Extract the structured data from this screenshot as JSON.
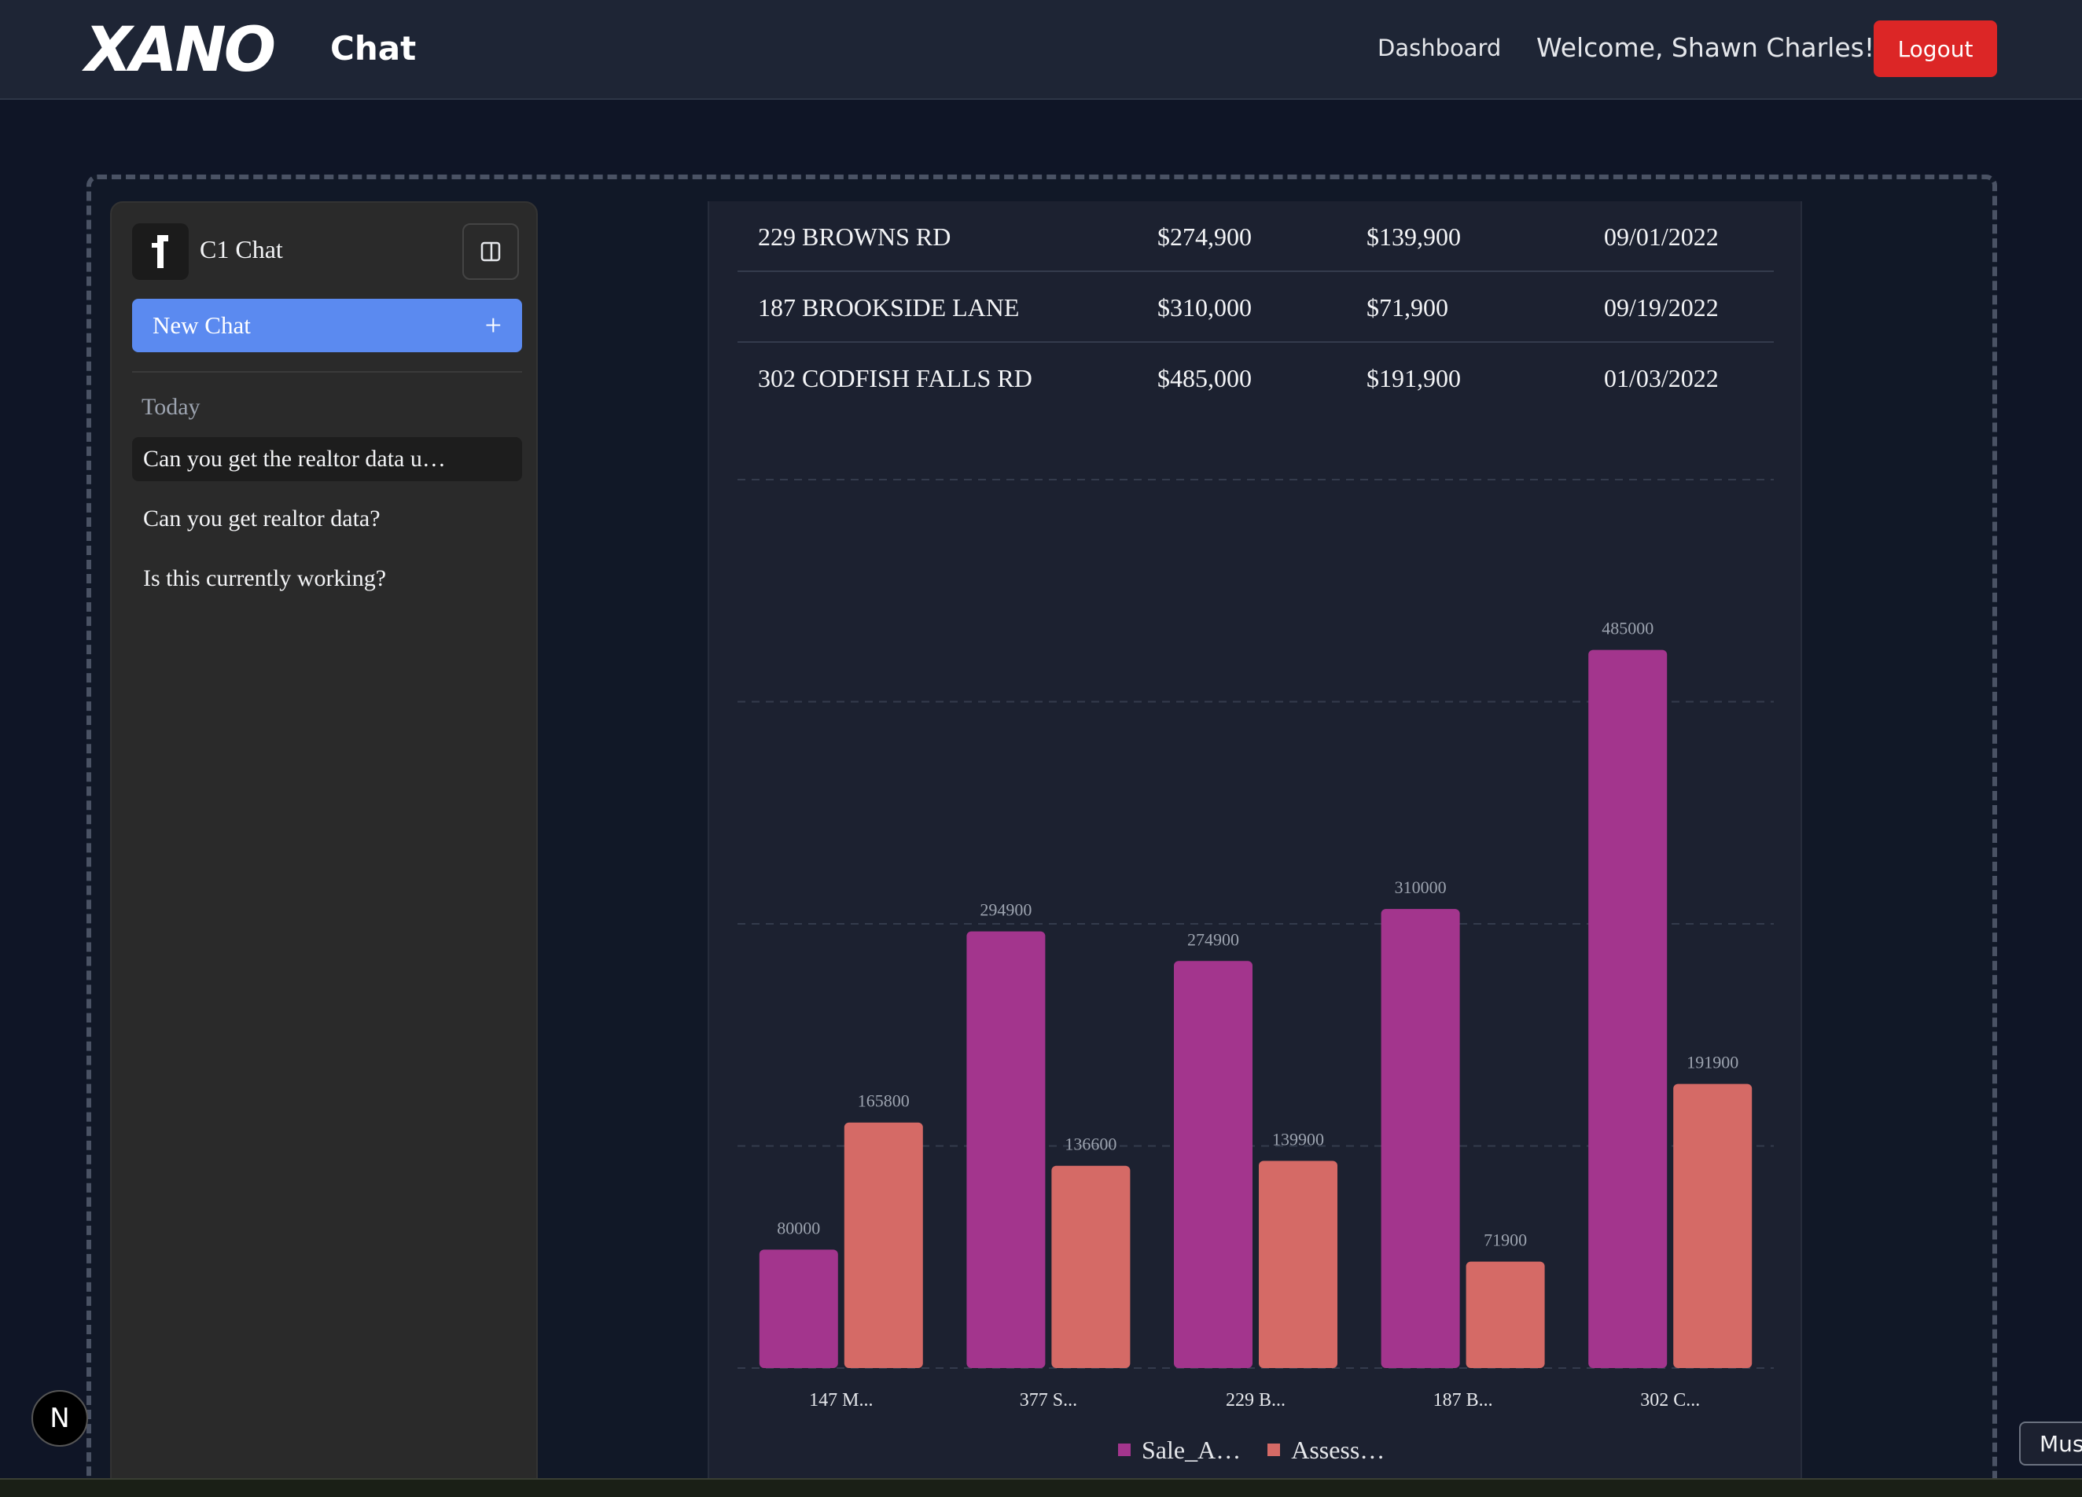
{
  "header": {
    "logo_text": "XANO",
    "logo_sub": "Chat",
    "nav_dashboard": "Dashboard",
    "welcome": "Welcome, Shawn Charles!",
    "logout": "Logout"
  },
  "sidebar": {
    "title": "C1 Chat",
    "new_chat_label": "New Chat",
    "section_label": "Today",
    "items": [
      {
        "label": "Can you get the realtor data u…",
        "active": true
      },
      {
        "label": "Can you get realtor data?",
        "active": false
      },
      {
        "label": "Is this currently working?",
        "active": false
      }
    ]
  },
  "table": {
    "rows": [
      [
        "229 BROWNS RD",
        "$274,900",
        "$139,900",
        "09/01/2022"
      ],
      [
        "187 BROOKSIDE LANE",
        "$310,000",
        "$71,900",
        "09/19/2022"
      ],
      [
        "302 CODFISH FALLS RD",
        "$485,000",
        "$191,900",
        "01/03/2022"
      ]
    ]
  },
  "chart_data": {
    "type": "bar",
    "categories": [
      "147 M...",
      "377 S...",
      "229 B...",
      "187 B...",
      "302 C..."
    ],
    "series": [
      {
        "name": "Sale_A…",
        "color": "#a3358d",
        "values": [
          80000,
          294900,
          274900,
          310000,
          485000
        ]
      },
      {
        "name": "Assess…",
        "color": "#d56a66",
        "values": [
          165800,
          136600,
          139900,
          71900,
          191900
        ]
      }
    ],
    "ylim": [
      0,
      600000
    ],
    "grid": true,
    "legend_position": "bottom"
  },
  "badge": {
    "label": "N"
  },
  "tooltip": {
    "label": "Mus"
  },
  "colors": {
    "accent": "#5b8af0",
    "logout": "#dc2626",
    "sale_series": "#a3358d",
    "assess_series": "#d56a66"
  }
}
